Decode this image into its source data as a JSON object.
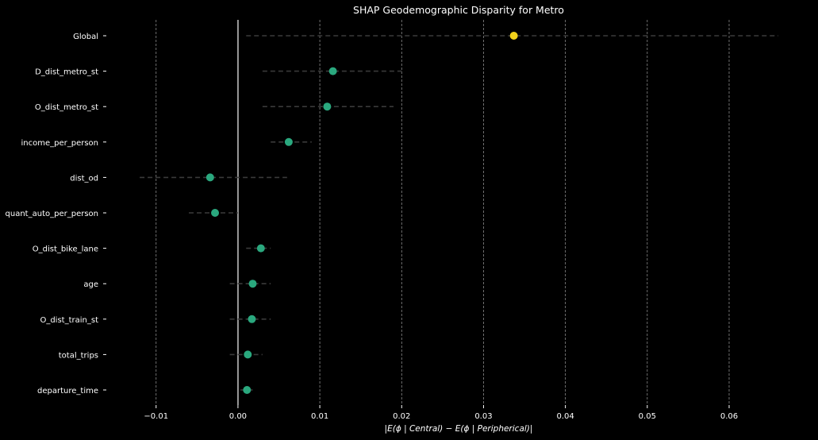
{
  "chart_data": {
    "type": "scatter",
    "title": "SHAP Geodemographic Disparity for Metro",
    "xlabel": "|E(ϕ | Central) − E(ϕ | Peripherical)|",
    "ylabel": "",
    "xlim": [
      -0.0155,
      0.0695
    ],
    "x_ticks": [
      "−0.01",
      "0.00",
      "0.01",
      "0.02",
      "0.03",
      "0.04",
      "0.05",
      "0.06"
    ],
    "x_tick_values": [
      -0.01,
      0.0,
      0.01,
      0.02,
      0.03,
      0.04,
      0.05,
      0.06
    ],
    "grid": "vertical dashed",
    "reference_line": 0.0,
    "categories": [
      "Global",
      "D_dist_metro_st",
      "O_dist_metro_st",
      "income_per_person",
      "dist_od",
      "quant_auto_per_person",
      "O_dist_bike_lane",
      "age",
      "O_dist_train_st",
      "total_trips",
      "departure_time"
    ],
    "values": [
      0.0337,
      0.0116,
      0.0109,
      0.0062,
      -0.0034,
      -0.0028,
      0.0028,
      0.0018,
      0.0017,
      0.0012,
      0.0011
    ],
    "ci_low": [
      0.001,
      0.003,
      0.003,
      0.004,
      -0.012,
      -0.006,
      0.001,
      -0.001,
      -0.001,
      -0.001,
      0.0003
    ],
    "ci_high": [
      0.066,
      0.02,
      0.019,
      0.009,
      0.006,
      0.0,
      0.004,
      0.004,
      0.004,
      0.003,
      0.0018
    ],
    "highlight_color": "#f2d21b",
    "point_color": "#2aa87e",
    "ci_color": "#3a3a3a",
    "grid_color": "#8a8a8a",
    "zero_line_color": "#9a9a9a"
  }
}
